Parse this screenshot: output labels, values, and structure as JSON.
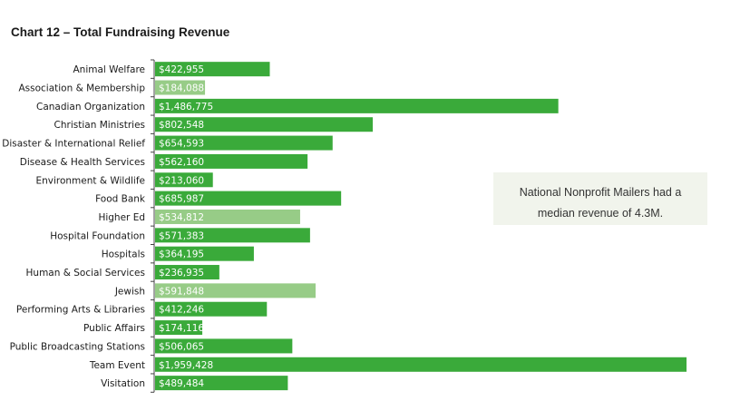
{
  "chart_data": {
    "type": "bar",
    "orientation": "horizontal",
    "title": "Chart 12 – Total Fundraising Revenue",
    "categories": [
      "Animal Welfare",
      "Association & Membership",
      "Canadian Organization",
      "Christian Ministries",
      "Disaster & International Relief",
      "Disease & Health Services",
      "Environment & Wildlife",
      "Food Bank",
      "Higher Ed",
      "Hospital Foundation",
      "Hospitals",
      "Human & Social Services",
      "Jewish",
      "Performing Arts & Libraries",
      "Public Affairs",
      "Public Broadcasting Stations",
      "Team Event",
      "Visitation"
    ],
    "values": [
      422955,
      184088,
      1486775,
      802548,
      654593,
      562160,
      213060,
      685987,
      534812,
      571383,
      364195,
      236935,
      591848,
      412246,
      174116,
      506065,
      1959428,
      489484
    ],
    "value_labels": [
      "$422,955",
      "$184,088",
      "$1,486,775",
      "$802,548",
      "$654,593",
      "$562,160",
      "$213,060",
      "$685,987",
      "$534,812",
      "$571,383",
      "$364,195",
      "$236,935",
      "$591,848",
      "$412,246",
      "$174,116",
      "$506,065",
      "$1,959,428",
      "$489,484"
    ],
    "highlighted": [
      "Association & Membership",
      "Higher Ed",
      "Jewish"
    ],
    "xlim": [
      0,
      1959428
    ],
    "grid": false,
    "colors": {
      "bar": "#3aaa3a",
      "bar_highlight": "#97cc87"
    }
  },
  "annotation": {
    "line1": "National Nonprofit Mailers had a",
    "line2": "median revenue of 4.3M."
  }
}
